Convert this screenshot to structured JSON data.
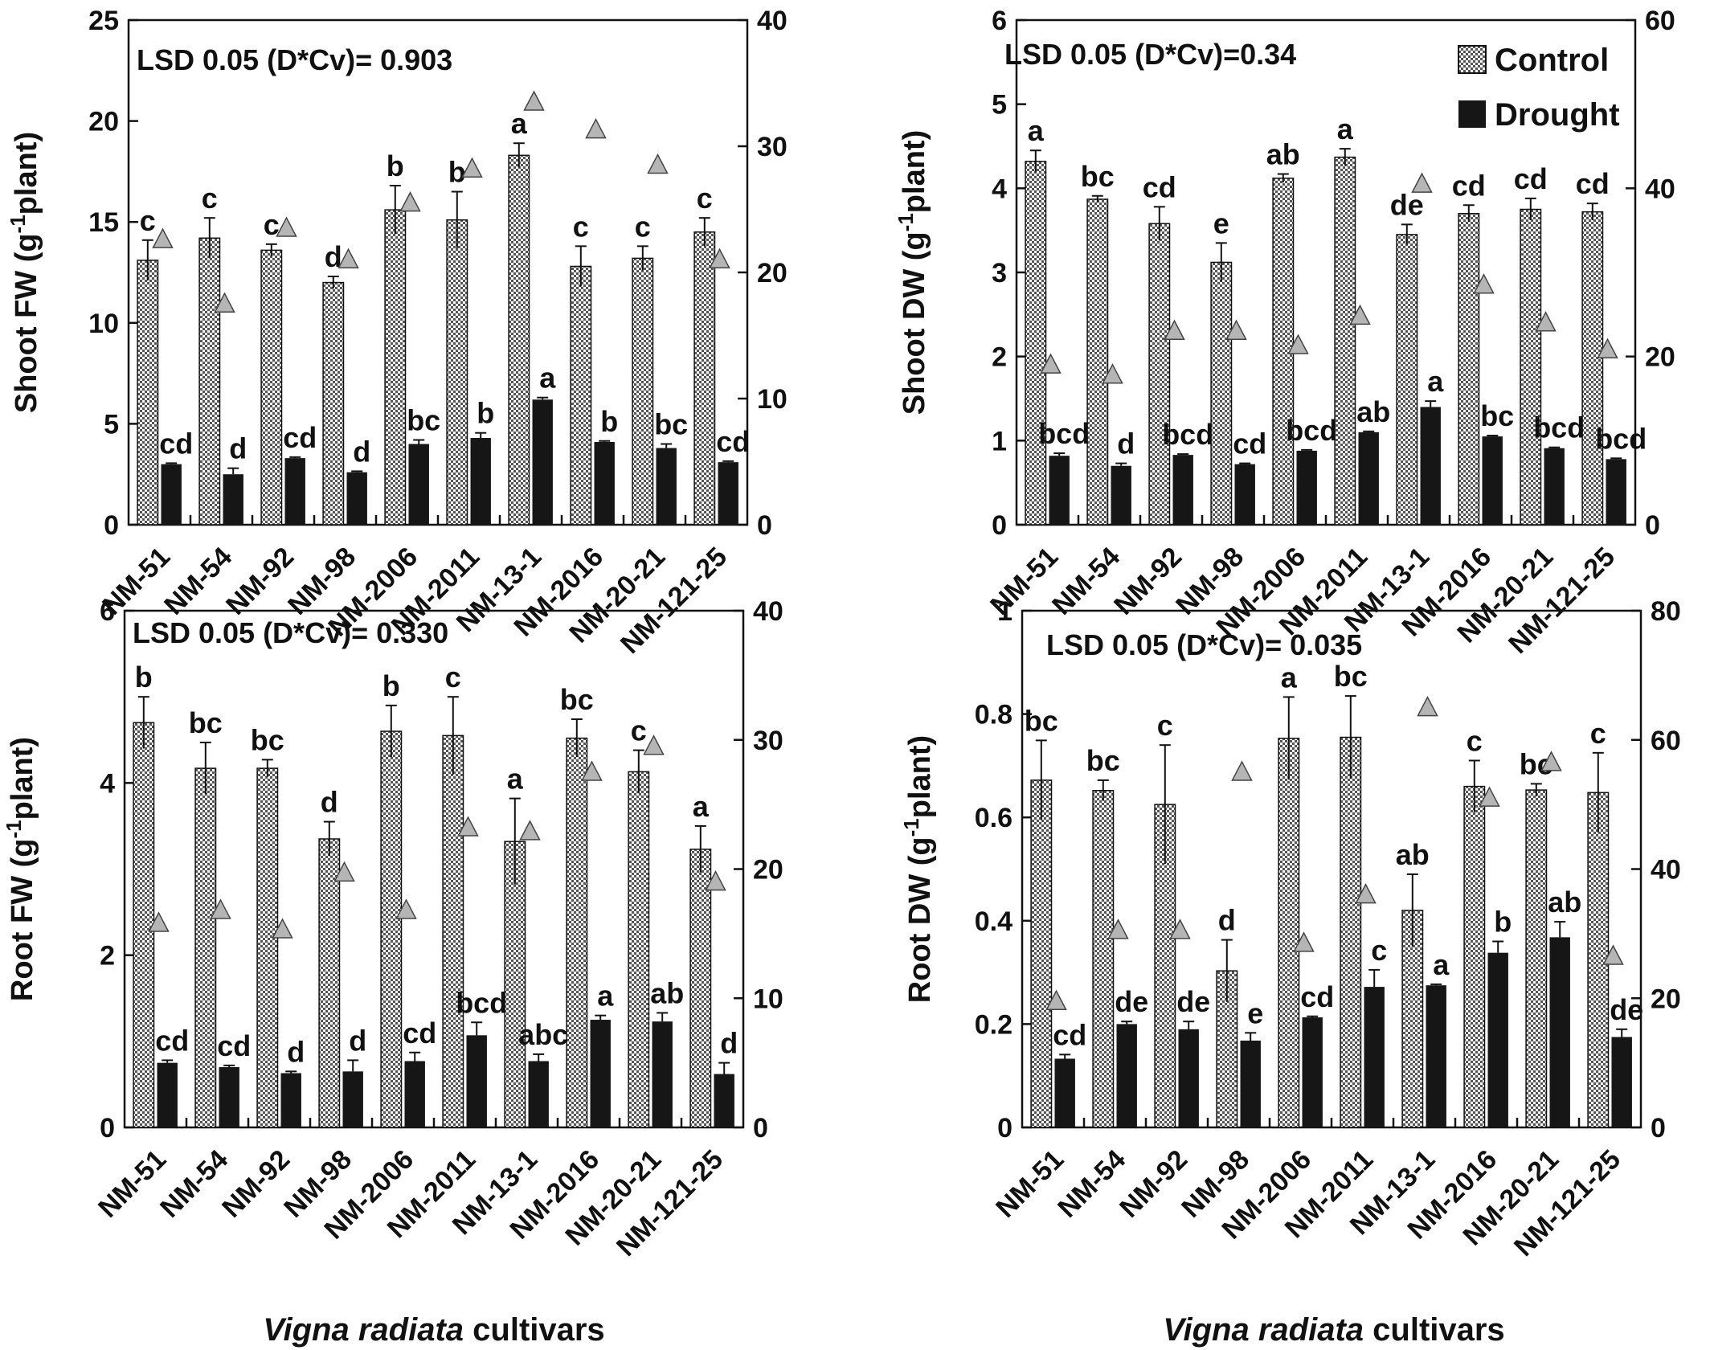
{
  "categories": [
    "NM-51",
    "NM-54",
    "NM-92",
    "NM-98",
    "NM-2006",
    "NM-2011",
    "NM-13-1",
    "NM-2016",
    "NM-20-21",
    "NM-121-25"
  ],
  "x_axis_label_italic": "Vigna radiata",
  "x_axis_label_rest": " cultivars",
  "legend": {
    "control": "Control",
    "drought": "Drought"
  },
  "colors": {
    "control_fill": "#c9c9c9",
    "drought_fill": "#161616",
    "triangle_fill": "#b5b5b5",
    "axis": "#111111"
  },
  "chart_data": [
    {
      "id": "shoot-fw",
      "type": "bar",
      "ylabel_main": "Shoot FW (g",
      "ylabel_sup": "-1",
      "ylabel_end": "plant)",
      "annotation": "LSD 0.05 (D*Cv)= 0.903",
      "ylim": [
        0,
        25
      ],
      "yticks": [
        "0",
        "5",
        "10",
        "15",
        "20",
        "25"
      ],
      "y2lim": [
        0,
        40
      ],
      "y2ticks": [
        "0",
        "10",
        "20",
        "30",
        "40"
      ],
      "control": [
        13.1,
        14.2,
        13.6,
        12.0,
        15.6,
        15.1,
        18.3,
        12.8,
        13.2,
        14.5
      ],
      "control_err": [
        1.0,
        1.0,
        0.3,
        0.3,
        1.2,
        1.4,
        0.6,
        1.0,
        0.6,
        0.7
      ],
      "control_letters": [
        "c",
        "c",
        "c",
        "d",
        "b",
        "b",
        "a",
        "c",
        "c",
        "c"
      ],
      "drought": [
        3.0,
        2.5,
        3.3,
        2.6,
        4.0,
        4.3,
        6.2,
        4.1,
        3.8,
        3.1
      ],
      "drought_err": [
        0.05,
        0.3,
        0.05,
        0.05,
        0.2,
        0.25,
        0.1,
        0.05,
        0.2,
        0.05
      ],
      "drought_letters": [
        "cd",
        "d",
        "cd",
        "d",
        "bc",
        "b",
        "a",
        "b",
        "bc",
        "cd"
      ],
      "triangle": [
        22.6,
        17.5,
        23.5,
        21.0,
        25.5,
        28.2,
        33.5,
        31.3,
        28.5,
        21.0
      ]
    },
    {
      "id": "shoot-dw",
      "type": "bar",
      "ylabel_main": "Shoot DW (g",
      "ylabel_sup": "-1",
      "ylabel_end": "plant)",
      "annotation": "LSD 0.05 (D*Cv)=0.34",
      "has_legend": true,
      "ylim": [
        0,
        6
      ],
      "yticks": [
        "0",
        "1",
        "2",
        "3",
        "4",
        "5",
        "6"
      ],
      "y2lim": [
        0,
        60
      ],
      "y2ticks": [
        "0",
        "20",
        "40",
        "60"
      ],
      "control": [
        4.32,
        3.87,
        3.58,
        3.12,
        4.12,
        4.37,
        3.45,
        3.7,
        3.75,
        3.72
      ],
      "control_err": [
        0.13,
        0.04,
        0.2,
        0.23,
        0.05,
        0.1,
        0.12,
        0.1,
        0.13,
        0.1
      ],
      "control_letters": [
        "a",
        "bc",
        "cd",
        "e",
        "ab",
        "a",
        "de",
        "cd",
        "cd",
        "cd"
      ],
      "drought": [
        0.82,
        0.7,
        0.83,
        0.72,
        0.88,
        1.1,
        1.4,
        1.05,
        0.91,
        0.78
      ],
      "drought_err": [
        0.03,
        0.03,
        0.01,
        0.01,
        0.01,
        0.01,
        0.07,
        0.01,
        0.01,
        0.01
      ],
      "drought_letters": [
        "bcd",
        "d",
        "bcd",
        "cd",
        "bcd",
        "ab",
        "a",
        "bc",
        "bcd",
        "bcd"
      ],
      "triangle": [
        19.0,
        17.8,
        23.0,
        23.0,
        21.3,
        24.8,
        40.5,
        28.5,
        24.0,
        20.8
      ]
    },
    {
      "id": "root-fw",
      "type": "bar",
      "ylabel_main": "Root FW (g",
      "ylabel_sup": "-1",
      "ylabel_end": "plant)",
      "annotation": "LSD 0.05 (D*Cv)= 0.330",
      "ylim": [
        0,
        6
      ],
      "yticks": [
        "0",
        "2",
        "4",
        "6"
      ],
      "y2lim": [
        0,
        40
      ],
      "y2ticks": [
        "0",
        "10",
        "20",
        "30",
        "40"
      ],
      "control": [
        4.7,
        4.17,
        4.17,
        3.35,
        4.6,
        4.55,
        3.32,
        4.52,
        4.13,
        3.23
      ],
      "control_err": [
        0.3,
        0.3,
        0.1,
        0.2,
        0.3,
        0.45,
        0.5,
        0.22,
        0.25,
        0.27
      ],
      "control_letters": [
        "b",
        "bc",
        "bc",
        "d",
        "b",
        "c",
        "a",
        "bc",
        "c",
        "a"
      ],
      "drought": [
        0.75,
        0.7,
        0.63,
        0.65,
        0.77,
        1.07,
        0.77,
        1.25,
        1.23,
        0.62
      ],
      "drought_err": [
        0.03,
        0.02,
        0.02,
        0.13,
        0.1,
        0.15,
        0.08,
        0.05,
        0.1,
        0.13
      ],
      "drought_letters": [
        "cd",
        "cd",
        "d",
        "d",
        "cd",
        "bcd",
        "abc",
        "a",
        "ab",
        "d"
      ],
      "triangle": [
        15.8,
        16.8,
        15.3,
        19.7,
        16.8,
        23.2,
        22.9,
        27.5,
        29.5,
        19.0
      ]
    },
    {
      "id": "root-dw",
      "type": "bar",
      "ylabel_main": "Root DW (g",
      "ylabel_sup": "-1",
      "ylabel_end": "plant)",
      "annotation": "LSD 0.05 (D*Cv)= 0.035",
      "ylim": [
        0,
        1
      ],
      "yticks": [
        "0",
        "0.2",
        "0.4",
        "0.6",
        "0.8",
        "1"
      ],
      "y2lim": [
        0,
        80
      ],
      "y2ticks": [
        "0",
        "20",
        "40",
        "60",
        "80"
      ],
      "control": [
        0.672,
        0.652,
        0.625,
        0.303,
        0.753,
        0.755,
        0.42,
        0.66,
        0.653,
        0.648
      ],
      "control_err": [
        0.077,
        0.02,
        0.115,
        0.06,
        0.08,
        0.08,
        0.07,
        0.05,
        0.012,
        0.077
      ],
      "control_letters": [
        "bc",
        "bc",
        "c",
        "d",
        "a",
        "bc",
        "ab",
        "c",
        "bc",
        "c"
      ],
      "drought": [
        0.133,
        0.2,
        0.19,
        0.168,
        0.213,
        0.272,
        0.275,
        0.338,
        0.368,
        0.175
      ],
      "drought_err": [
        0.008,
        0.005,
        0.015,
        0.015,
        0.002,
        0.033,
        0.002,
        0.022,
        0.03,
        0.015
      ],
      "drought_letters": [
        "cd",
        "de",
        "de",
        "e",
        "cd",
        "c",
        "a",
        "b",
        "ab",
        "de"
      ],
      "triangle": [
        19.5,
        30.5,
        30.5,
        55.0,
        28.5,
        36.0,
        65.0,
        51.0,
        56.5,
        26.5
      ]
    }
  ]
}
